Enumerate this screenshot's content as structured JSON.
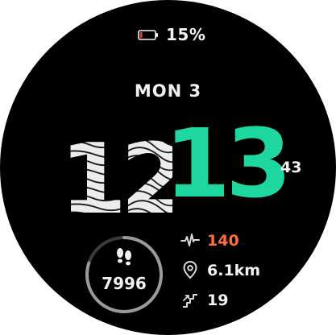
{
  "status": {
    "battery_text": "15%",
    "battery_level_fraction": 0.15,
    "battery_color": "#e53935",
    "battery_icon": "battery-icon"
  },
  "date": {
    "label": "MON 3"
  },
  "time": {
    "hours": "12",
    "minutes": "13",
    "seconds": "43",
    "minutes_color": "#1ed6a0"
  },
  "steps": {
    "value": "7996",
    "progress_fraction": 0.8,
    "icon": "footsteps-icon"
  },
  "stats": [
    {
      "icon": "heart-rate-icon",
      "value": "140",
      "color": "#ff6f3c"
    },
    {
      "icon": "location-pin-icon",
      "value": "6.1km",
      "color": "#f2f2f2"
    },
    {
      "icon": "stairs-icon",
      "value": "19",
      "color": "#f2f2f2"
    }
  ]
}
